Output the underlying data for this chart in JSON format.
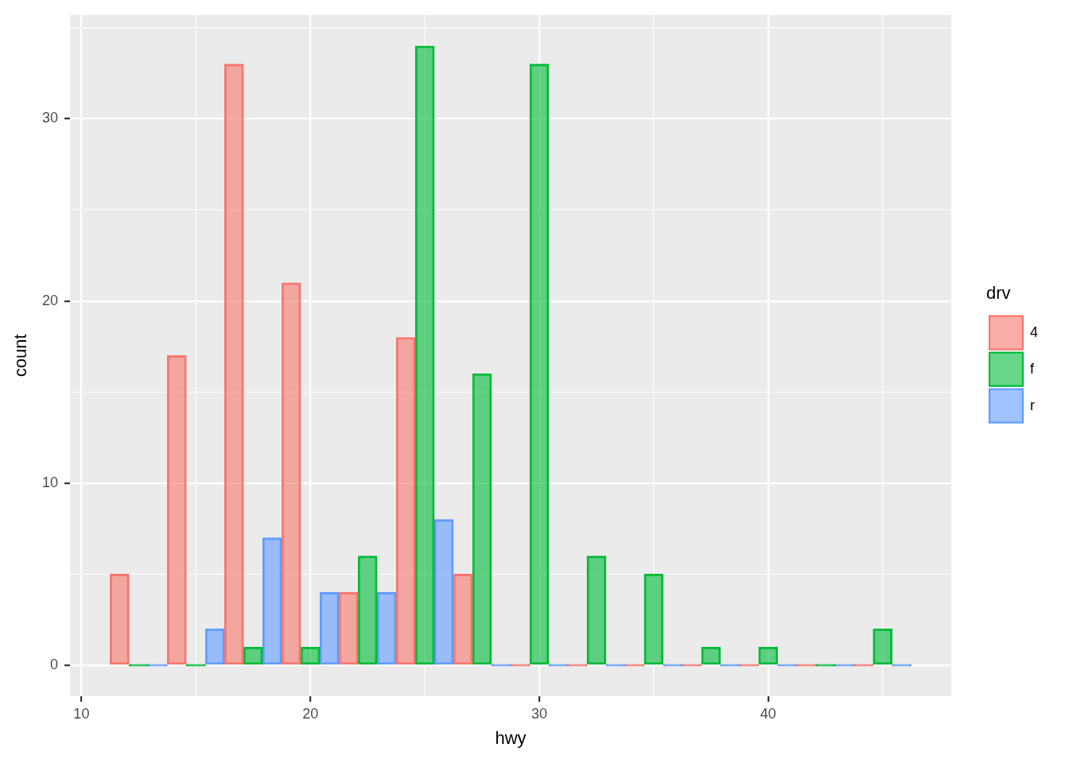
{
  "chart_data": {
    "type": "bar",
    "xlabel": "hwy",
    "ylabel": "count",
    "legend_title": "drv",
    "x": [
      12.5,
      15,
      17.5,
      20,
      22.5,
      25,
      27.5,
      30,
      32.5,
      35,
      37.5,
      40,
      42.5,
      45
    ],
    "series": [
      {
        "name": "4",
        "color": "#f8766d",
        "values": [
          5,
          17,
          33,
          21,
          4,
          18,
          5,
          0,
          0,
          0,
          0,
          0,
          0,
          0
        ]
      },
      {
        "name": "f",
        "color": "#00ba38",
        "values": [
          0,
          0,
          1,
          1,
          6,
          34,
          16,
          33,
          6,
          5,
          1,
          1,
          0,
          2
        ]
      },
      {
        "name": "r",
        "color": "#619cff",
        "values": [
          0,
          2,
          7,
          4,
          4,
          8,
          0,
          0,
          0,
          0,
          0,
          0,
          0,
          0
        ]
      }
    ],
    "xlim": [
      9.5,
      48
    ],
    "ylim": [
      -1.7,
      35.7
    ],
    "xticks": [
      10,
      20,
      30,
      40
    ],
    "yticks": [
      0,
      10,
      20,
      30
    ],
    "grid": true,
    "legend": "right"
  }
}
